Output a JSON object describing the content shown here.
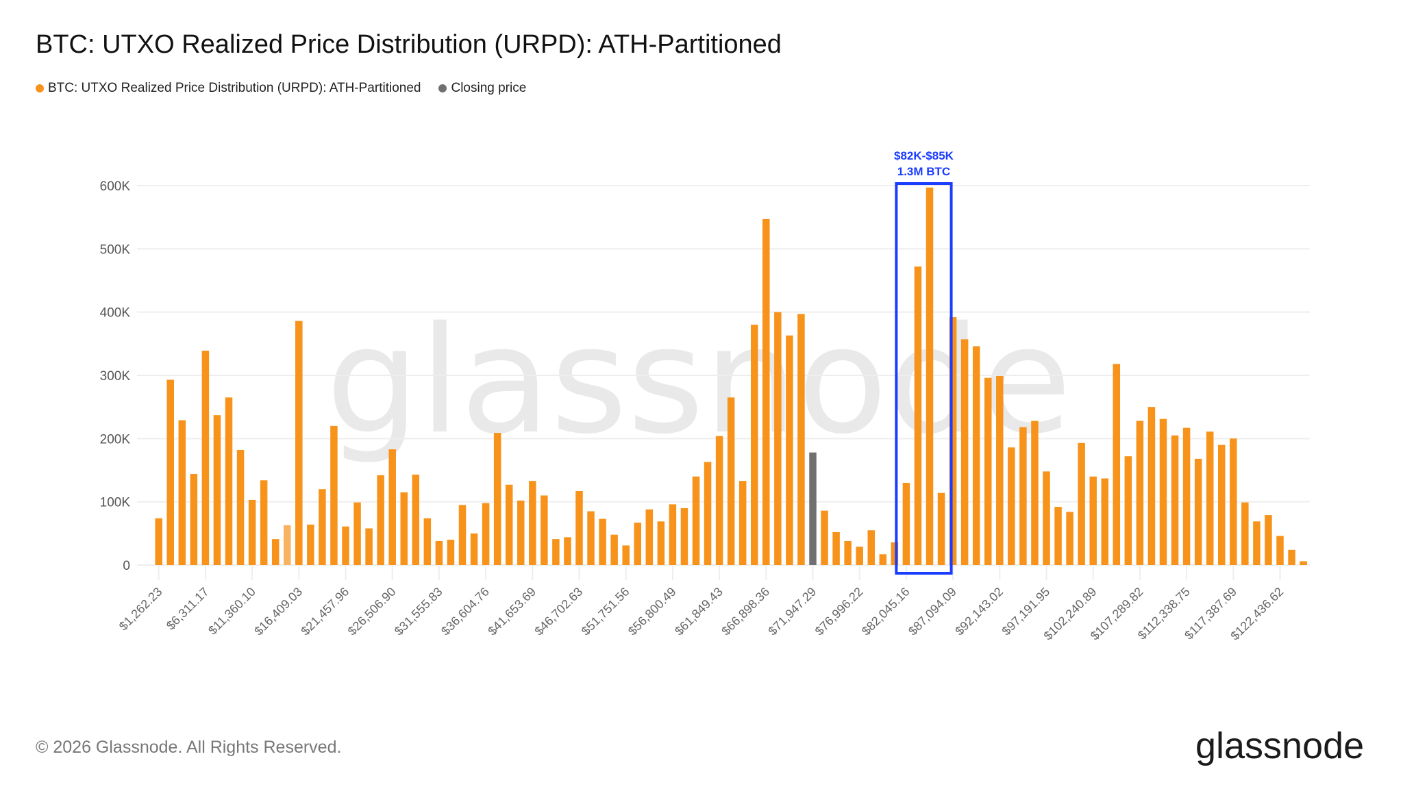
{
  "title": "BTC: UTXO Realized Price Distribution (URPD): ATH-Partitioned",
  "legend": [
    {
      "label": "BTC: UTXO Realized Price Distribution (URPD): ATH-Partitioned",
      "color": "#f7931a"
    },
    {
      "label": "Closing price",
      "color": "#707070"
    }
  ],
  "footer": {
    "copyright": "© 2026 Glassnode. All Rights Reserved.",
    "logo": "glassnode",
    "watermark": "glassnode"
  },
  "annotation": {
    "line1": "$82K-$85K",
    "line2": "1.3M BTC",
    "color": "#1a3cff",
    "box_from_bar": 65,
    "box_to_bar": 68
  },
  "chart_data": {
    "type": "bar",
    "title": "BTC: UTXO Realized Price Distribution (URPD): ATH-Partitioned",
    "xlabel": "",
    "ylabel": "",
    "ylim": [
      0,
      600000
    ],
    "yticks": [
      "0",
      "100K",
      "200K",
      "300K",
      "400K",
      "500K",
      "600K"
    ],
    "grid": true,
    "legend_position": "top-left",
    "bin_width_usd": 1262.23,
    "xtick_every": 4,
    "xtick_labels": [
      "$1,262.23",
      "$6,311.17",
      "$11,360.10",
      "$16,409.03",
      "$21,457.96",
      "$26,506.90",
      "$31,555.83",
      "$36,604.76",
      "$41,653.69",
      "$46,702.63",
      "$51,751.56",
      "$56,800.49",
      "$61,849.43",
      "$66,898.36",
      "$71,947.29",
      "$76,996.22",
      "$82,045.16",
      "$87,094.09",
      "$92,143.02",
      "$97,191.95",
      "$102,240.89",
      "$107,289.82",
      "$112,338.75",
      "$117,387.69",
      "$122,436.62"
    ],
    "closing_price_bar": 57,
    "highlighted_bar": 12,
    "colors": {
      "bar": "#f7931a",
      "highlighted": "#f8b260",
      "closing": "#707070"
    },
    "values": [
      74000,
      293000,
      229000,
      144000,
      339000,
      237000,
      265000,
      182000,
      103000,
      134000,
      41000,
      63000,
      386000,
      64000,
      120000,
      220000,
      61000,
      99000,
      58000,
      142000,
      183000,
      115000,
      143000,
      74000,
      38000,
      40000,
      95000,
      50000,
      98000,
      209000,
      127000,
      102000,
      133000,
      110000,
      41000,
      44000,
      117000,
      85000,
      73000,
      48000,
      31000,
      67000,
      88000,
      69000,
      96000,
      90000,
      140000,
      163000,
      204000,
      265000,
      133000,
      380000,
      547000,
      400000,
      363000,
      397000,
      178000,
      86000,
      52000,
      38000,
      29000,
      55000,
      17000,
      36000,
      130000,
      472000,
      597000,
      114000,
      392000,
      357000,
      346000,
      296000,
      299000,
      186000,
      218000,
      228000,
      148000,
      92000,
      84000,
      193000,
      140000,
      137000,
      318000,
      172000,
      228000,
      250000,
      231000,
      205000,
      217000,
      168000,
      211000,
      190000,
      200000,
      99000,
      69000,
      79000,
      46000,
      24000,
      6000
    ]
  }
}
